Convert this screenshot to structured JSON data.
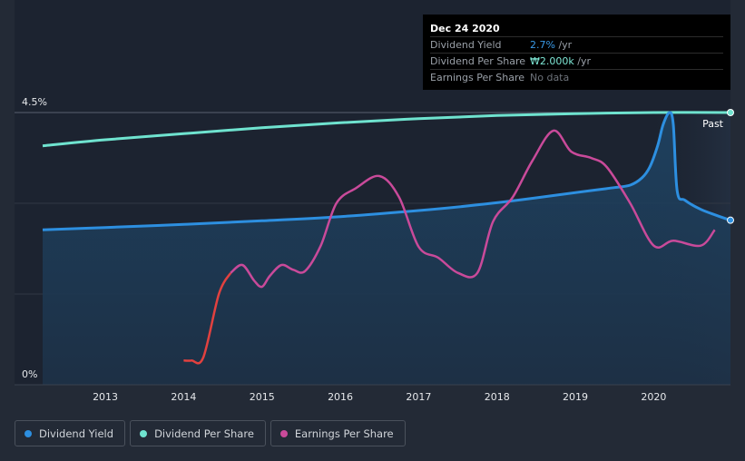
{
  "tooltip": {
    "date": "Dec 24 2020",
    "rows": [
      {
        "label": "Dividend Yield",
        "value": "2.7%",
        "unit": " /yr"
      },
      {
        "label": "Dividend Per Share",
        "value": "₩2.000k",
        "unit": " /yr"
      },
      {
        "label": "Earnings Per Share",
        "value": "No data",
        "unit": ""
      }
    ]
  },
  "legend": [
    {
      "label": "Dividend Yield",
      "color": "#2d8fe0"
    },
    {
      "label": "Dividend Per Share",
      "color": "#6fe3cf"
    },
    {
      "label": "Earnings Per Share",
      "color": "#c94a9a"
    }
  ],
  "chart_data": {
    "type": "line",
    "title": "",
    "xlabel": "",
    "ylabel": "",
    "y_tick_labels": [
      "4.5%",
      "0%"
    ],
    "ylim": [
      0,
      4.5
    ],
    "xlim": [
      2012.2,
      2020.98
    ],
    "x_ticks": [
      2013,
      2014,
      2015,
      2016,
      2017,
      2018,
      2019,
      2020
    ],
    "x_tick_labels": [
      "2013",
      "2014",
      "2015",
      "2016",
      "2017",
      "2018",
      "2019",
      "2020"
    ],
    "past_label": "Past",
    "past_region_start": 2019.95,
    "series": [
      {
        "name": "Dividend Yield",
        "color": "#2d8fe0",
        "x": [
          2012.2,
          2013,
          2014,
          2015,
          2016,
          2017,
          2017.8,
          2018.5,
          2019.2,
          2019.5,
          2019.7,
          2019.85,
          2019.95,
          2020.05,
          2020.12,
          2020.2,
          2020.25,
          2020.3,
          2020.4,
          2020.6,
          2020.8,
          2020.98
        ],
        "y": [
          2.56,
          2.6,
          2.65,
          2.71,
          2.78,
          2.88,
          2.98,
          3.09,
          3.21,
          3.26,
          3.3,
          3.42,
          3.6,
          3.95,
          4.3,
          4.5,
          4.3,
          3.2,
          3.05,
          2.9,
          2.8,
          2.72
        ]
      },
      {
        "name": "Dividend Per Share",
        "color": "#6fe3cf",
        "x": [
          2012.2,
          2013,
          2014,
          2015,
          2016,
          2017,
          2018,
          2019,
          2020,
          2020.98
        ],
        "y": [
          3.95,
          4.05,
          4.15,
          4.25,
          4.33,
          4.4,
          4.45,
          4.48,
          4.5,
          4.5
        ]
      },
      {
        "name": "Earnings Per Share",
        "color": "#c94a9a",
        "early_color": "#e2413f",
        "x": [
          2014,
          2014.1,
          2014.25,
          2014.45,
          2014.6,
          2014.75,
          2014.9,
          2015.0,
          2015.1,
          2015.25,
          2015.4,
          2015.55,
          2015.75,
          2015.95,
          2016.2,
          2016.5,
          2016.75,
          2017.0,
          2017.25,
          2017.5,
          2017.75,
          2017.95,
          2018.2,
          2018.45,
          2018.72,
          2018.95,
          2019.2,
          2019.4,
          2019.7,
          2020.0,
          2020.25,
          2020.6,
          2020.78
        ],
        "y": [
          0.4,
          0.4,
          0.45,
          1.5,
          1.85,
          1.98,
          1.72,
          1.62,
          1.8,
          1.98,
          1.9,
          1.88,
          2.3,
          3.0,
          3.25,
          3.45,
          3.1,
          2.28,
          2.1,
          1.85,
          1.85,
          2.7,
          3.1,
          3.7,
          4.2,
          3.85,
          3.75,
          3.6,
          3.0,
          2.3,
          2.38,
          2.3,
          2.56
        ]
      }
    ]
  }
}
